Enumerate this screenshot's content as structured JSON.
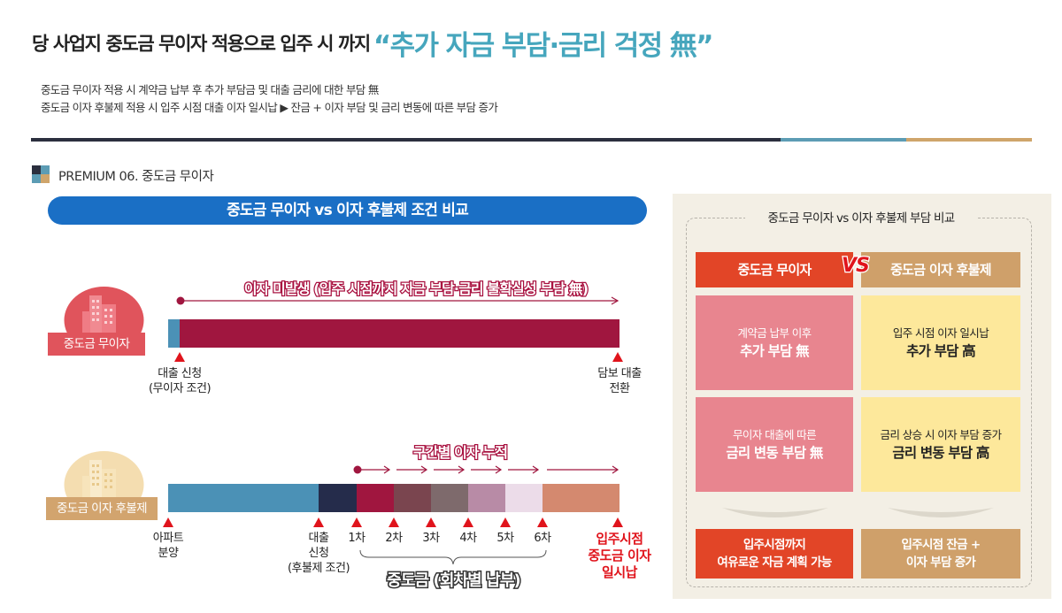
{
  "header": {
    "headline_main": "당 사업지 중도금 무이자 적용으로 입주 시 까지",
    "headline_accent": "“추가 자금 부담·금리 걱정 無”",
    "line1": "중도금 무이자 적용 시 계약금 납부 후 추가 부담금 및 대출 금리에 대한 부담 無",
    "line2": "중도금 이자 후불제 적용 시 입주 시점 대출 이자 일시납 ▶ 잔금 + 이자 부담 및 금리 변동에 따른 부담 증가"
  },
  "colors": {
    "accent_teal": "#46a6bd",
    "pill_blue": "#1a6fc5",
    "marker_red": "#e0141c",
    "bar_crimson": "#a0163f",
    "bar_steel": "#4b91b6",
    "panel_red": "#e24527",
    "panel_tan": "#cfa06a",
    "cell_pink": "#e8858f",
    "cell_yellow": "#fde89b"
  },
  "section": {
    "title": "PREMIUM 06. 중도금 무이자"
  },
  "timeline": {
    "pill_title": "중도금 무이자 vs 이자 후불제 조건 비교",
    "row1": {
      "icon": "building-icon",
      "tag": "중도금 무이자",
      "banner": "이자 미발생 (입주 시점까지 자금 부담·금리 불확실성 부담 無)",
      "start_label_1": "대출 신청",
      "start_label_2": "(무이자 조건)",
      "end_label_1": "담보 대출",
      "end_label_2": "전환"
    },
    "row2": {
      "icon": "building-icon",
      "tag": "중도금 이자 후불제",
      "banner": "구간별 이자 누적",
      "segments": [
        {
          "name": "분양",
          "color": "#4b91b6"
        },
        {
          "name": "대출",
          "color": "#252c4b"
        },
        {
          "name": "1차",
          "color": "#a0163f"
        },
        {
          "name": "2차",
          "color": "#7a454f"
        },
        {
          "name": "3차",
          "color": "#7e6a6c"
        },
        {
          "name": "4차",
          "color": "#b88ba6"
        },
        {
          "name": "5차",
          "color": "#ecdce9"
        },
        {
          "name": "6차",
          "color": "#d4896f"
        }
      ],
      "label_apt_1": "아파트",
      "label_apt_2": "분양",
      "label_loan_1": "대출",
      "label_loan_2": "신청",
      "label_loan_3": "(후불제 조건)",
      "installments": [
        "1차",
        "2차",
        "3차",
        "4차",
        "5차",
        "6차"
      ],
      "end_label_1": "입주시점",
      "end_label_2": "중도금 이자",
      "end_label_3": "일시납",
      "bracket_label": "중도금 (회차별 납부)"
    }
  },
  "panel": {
    "title": "중도금 무이자 vs 이자 후불제 부담 비교",
    "left_header": "중도금 무이자",
    "vs": "VS",
    "right_header": "중도금 이자 후불제",
    "cells": [
      {
        "small": "계약금 납부 이후",
        "big": "추가 부담 無"
      },
      {
        "small": "입주 시점 이자 일시납",
        "big": "추가 부담 高"
      },
      {
        "small": "무이자 대출에 따른",
        "big": "금리 변동 부담 無"
      },
      {
        "small": "금리 상승 시 이자 부담 증가",
        "big": "금리 변동 부담 高"
      }
    ],
    "left_result_1": "입주시점까지",
    "left_result_2": "여유로운 자금 계획 가능",
    "right_result_1": "입주시점 잔금 +",
    "right_result_2": "이자 부담 증가"
  }
}
